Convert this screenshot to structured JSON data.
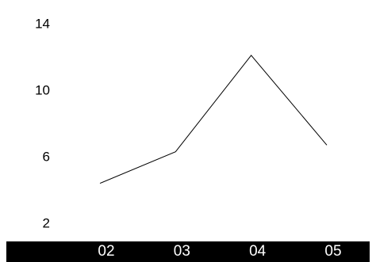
{
  "chart_data": {
    "type": "line",
    "title": "",
    "xlabel": "",
    "ylabel": "",
    "categories": [
      "02",
      "03",
      "04",
      "05"
    ],
    "x_positions": [
      2,
      3,
      4,
      5
    ],
    "xlim": [
      0.9,
      5.45
    ],
    "series": [
      {
        "values": [
          4.4,
          6.3,
          12.1,
          6.7
        ]
      }
    ],
    "y_ticks": [
      2,
      6,
      10,
      14
    ],
    "y_tick_labels": [
      "2",
      "6",
      "10",
      "14"
    ],
    "ylim": [
      0,
      15
    ],
    "grid": false,
    "legend": "none",
    "colors": {
      "line": "#000000",
      "x_axis_band": "#000000",
      "x_tick_text": "#ffffff",
      "y_tick_text": "#000000",
      "background": "#ffffff"
    }
  }
}
